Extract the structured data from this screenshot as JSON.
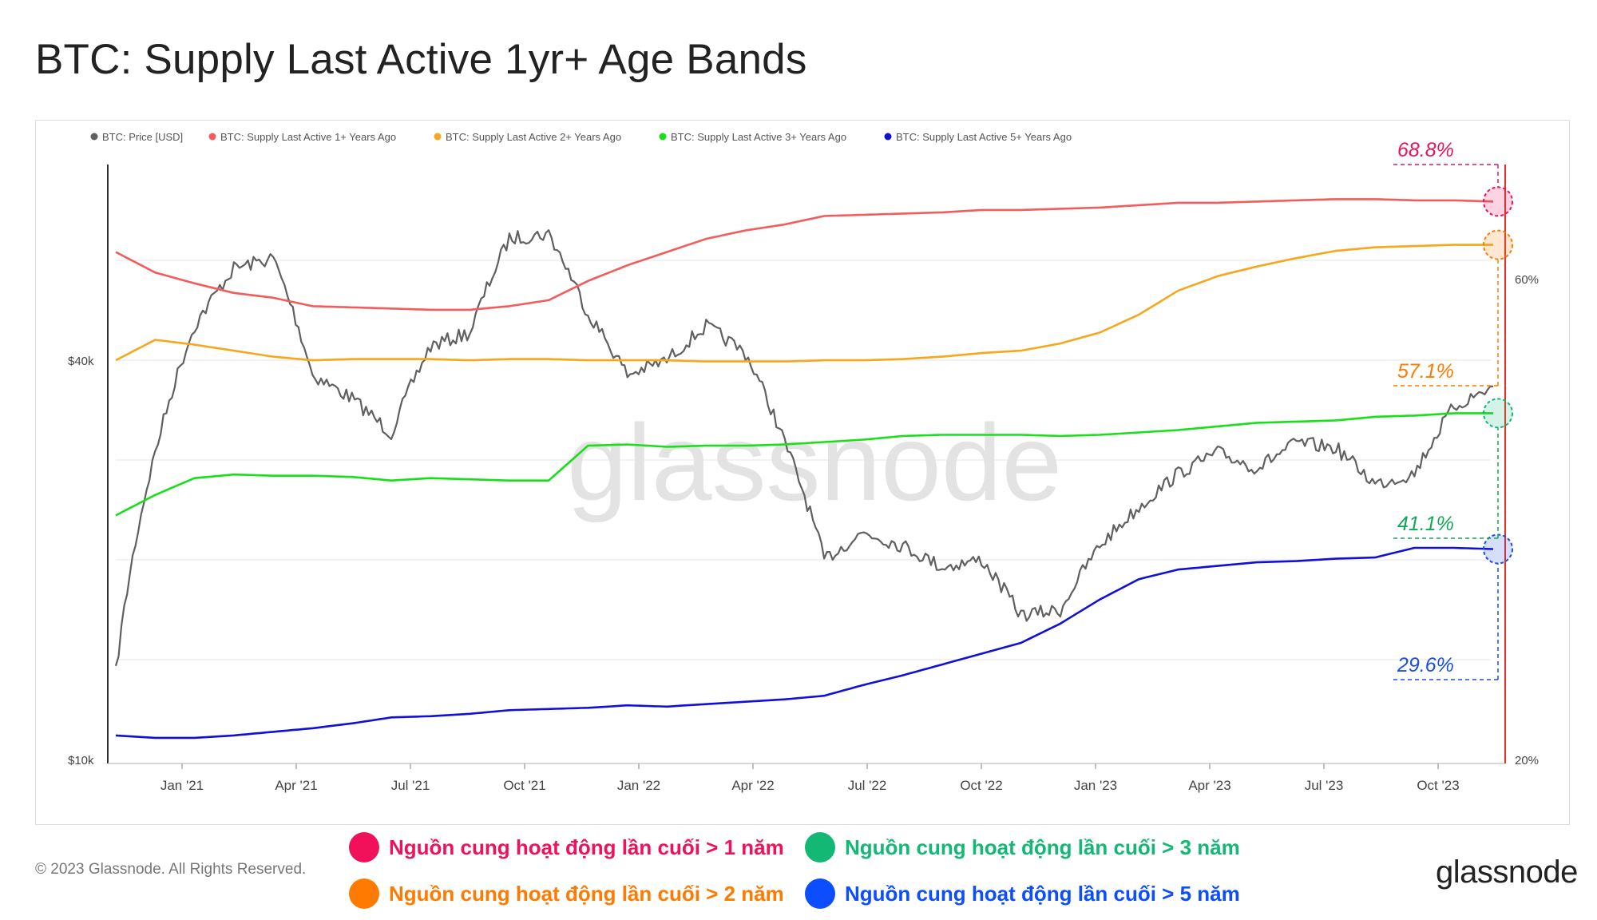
{
  "title": "BTC: Supply Last Active 1yr+ Age Bands",
  "footer": {
    "copyright": "© 2023 Glassnode. All Rights Reserved.",
    "logo": "glassnode"
  },
  "watermark": "glassnode",
  "vn_legend": [
    {
      "label": "Nguồn cung hoạt động lần cuối > 1 năm",
      "color": "#f0115a"
    },
    {
      "label": "Nguồn cung hoạt động lần cuối > 3 năm",
      "color": "#12b873"
    },
    {
      "label": "Nguồn cung hoạt động lần cuối > 2 năm",
      "color": "#ff7a00"
    },
    {
      "label": "Nguồn cung hoạt động lần cuối > 5 năm",
      "color": "#0b4dff"
    }
  ],
  "chart_data": {
    "type": "line",
    "title": "BTC: Supply Last Active 1yr+ Age Bands",
    "x_ticks": [
      "Jan '21",
      "Apr '21",
      "Jul '21",
      "Oct '21",
      "Jan '22",
      "Apr '22",
      "Jul '22",
      "Oct '22",
      "Jan '23",
      "Apr '23",
      "Jul '23",
      "Oct '23"
    ],
    "x": [
      "2020-11",
      "2021-01",
      "2021-02",
      "2021-03",
      "2021-04",
      "2021-05",
      "2021-06",
      "2021-07",
      "2021-08",
      "2021-09",
      "2021-10",
      "2021-11",
      "2021-12",
      "2022-01",
      "2022-02",
      "2022-03",
      "2022-04",
      "2022-05",
      "2022-06",
      "2022-07",
      "2022-08",
      "2022-09",
      "2022-10",
      "2022-11",
      "2022-12",
      "2023-01",
      "2023-02",
      "2023-03",
      "2023-04",
      "2023-05",
      "2023-06",
      "2023-07",
      "2023-08",
      "2023-09",
      "2023-10",
      "2023-11"
    ],
    "y_left": {
      "label": "",
      "scale": "log",
      "ticks": [
        "$10k",
        "$40k"
      ],
      "range": [
        10000,
        70000
      ]
    },
    "y_right": {
      "label": "",
      "ticks": [
        "20%",
        "60%"
      ],
      "range": [
        20,
        68
      ]
    },
    "grid": true,
    "legend_position": "top-left",
    "series": [
      {
        "name": "BTC: Price [USD]",
        "axis": "left",
        "color": "#606060",
        "values": [
          13500,
          29000,
          45000,
          55000,
          57000,
          38000,
          35000,
          31000,
          42000,
          44000,
          61000,
          62000,
          47000,
          38000,
          40000,
          45000,
          41000,
          30000,
          20000,
          22000,
          21000,
          19500,
          20000,
          16500,
          16800,
          21000,
          24000,
          27000,
          29000,
          27500,
          30000,
          29500,
          26000,
          27000,
          34000,
          36500
        ]
      },
      {
        "name": "BTC: Supply Last Active 1+ Years Ago",
        "axis": "right",
        "color": "#f25c5c",
        "values": [
          62.2,
          60.5,
          59.6,
          58.8,
          58.4,
          57.7,
          57.6,
          57.5,
          57.4,
          57.4,
          57.7,
          58.2,
          59.8,
          61.1,
          62.2,
          63.3,
          64.0,
          64.5,
          65.2,
          65.3,
          65.4,
          65.5,
          65.7,
          65.7,
          65.8,
          65.9,
          66.1,
          66.3,
          66.3,
          66.4,
          66.5,
          66.6,
          66.6,
          66.5,
          66.5,
          66.4
        ]
      },
      {
        "name": "BTC: Supply Last Active 2+ Years Ago",
        "axis": "right",
        "color": "#f7a71b",
        "values": [
          53.2,
          54.9,
          54.5,
          54.0,
          53.5,
          53.2,
          53.3,
          53.3,
          53.3,
          53.2,
          53.3,
          53.3,
          53.2,
          53.2,
          53.2,
          53.1,
          53.1,
          53.1,
          53.2,
          53.2,
          53.3,
          53.5,
          53.8,
          54.0,
          54.6,
          55.5,
          57.0,
          59.0,
          60.2,
          61.0,
          61.7,
          62.3,
          62.6,
          62.7,
          62.8,
          62.8
        ]
      },
      {
        "name": "BTC: Supply Last Active 3+ Years Ago",
        "axis": "right",
        "color": "#18e018",
        "values": [
          40.3,
          42.0,
          43.4,
          43.7,
          43.6,
          43.6,
          43.5,
          43.2,
          43.4,
          43.3,
          43.2,
          43.2,
          46.1,
          46.2,
          46.0,
          46.1,
          46.1,
          46.2,
          46.4,
          46.6,
          46.9,
          47.0,
          47.0,
          47.0,
          46.9,
          47.0,
          47.2,
          47.4,
          47.7,
          48.0,
          48.1,
          48.2,
          48.5,
          48.6,
          48.8,
          48.8
        ]
      },
      {
        "name": "BTC: Supply Last Active 5+ Years Ago",
        "axis": "right",
        "color": "#1010d8",
        "values": [
          22.0,
          21.8,
          21.8,
          22.0,
          22.3,
          22.6,
          23.0,
          23.5,
          23.6,
          23.8,
          24.1,
          24.2,
          24.3,
          24.5,
          24.4,
          24.6,
          24.8,
          25.0,
          25.3,
          26.2,
          27.0,
          27.9,
          28.8,
          29.7,
          31.3,
          33.3,
          35.0,
          35.8,
          36.1,
          36.4,
          36.5,
          36.7,
          36.8,
          37.6,
          37.6,
          37.5
        ]
      }
    ],
    "annotations": [
      {
        "text": "68.8%",
        "color": "#e6155e"
      },
      {
        "text": "57.1%",
        "color": "#ff7a00"
      },
      {
        "text": "41.1%",
        "color": "#12a858"
      },
      {
        "text": "29.6%",
        "color": "#1a4fe0"
      }
    ]
  }
}
